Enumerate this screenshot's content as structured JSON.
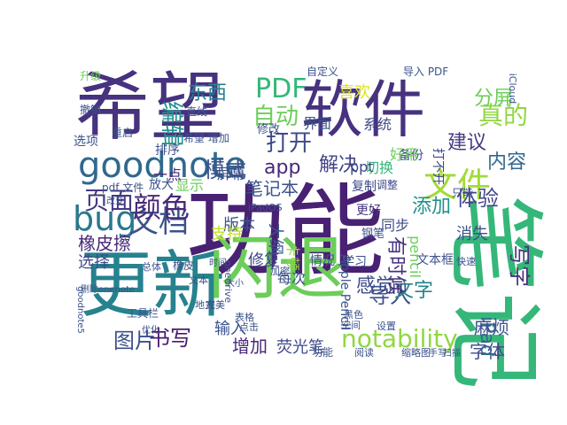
{
  "words": [
    {
      "text": "希望",
      "color": "#46327e",
      "vertical": false
    },
    {
      "text": "软件",
      "color": "#46327e",
      "vertical": false
    },
    {
      "text": "功能",
      "color": "#482173",
      "vertical": false
    },
    {
      "text": "更新",
      "color": "#26828e",
      "vertical": false
    },
    {
      "text": "闪退",
      "color": "#6ccd5a",
      "vertical": false
    },
    {
      "text": "笔记",
      "color": "#35b779",
      "vertical": true
    },
    {
      "text": "goodnote",
      "color": "#31688e",
      "vertical": false
    },
    {
      "text": "文件",
      "color": "#a2da37",
      "vertical": false
    },
    {
      "text": "bug",
      "color": "#2a788e",
      "vertical": false
    },
    {
      "text": "文档",
      "color": "#3b528b",
      "vertical": false
    },
    {
      "text": "颜色",
      "color": "#482878",
      "vertical": false
    },
    {
      "text": "页面",
      "color": "#443983",
      "vertical": false
    },
    {
      "text": "PDF",
      "color": "#35b779",
      "vertical": false
    },
    {
      "text": "自动",
      "color": "#6ccd5a",
      "vertical": false
    },
    {
      "text": "打开",
      "color": "#3e4989",
      "vertical": false
    },
    {
      "text": "app",
      "color": "#482878",
      "vertical": false
    },
    {
      "text": "模式",
      "color": "#3b528b",
      "vertical": false
    },
    {
      "text": "解决",
      "color": "#414487",
      "vertical": false
    },
    {
      "text": "真的",
      "color": "#90d743",
      "vertical": false
    },
    {
      "text": "分屏",
      "color": "#6ccd5a",
      "vertical": false
    },
    {
      "text": "建议",
      "color": "#443983",
      "vertical": false
    },
    {
      "text": "喜欢",
      "color": "#dde318",
      "vertical": false
    },
    {
      "text": "东西",
      "color": "#26828e",
      "vertical": false
    },
    {
      "text": "编辑",
      "color": "#21918c",
      "vertical": true
    },
    {
      "text": "体验",
      "color": "#414487",
      "vertical": false
    },
    {
      "text": "内容",
      "color": "#31688e",
      "vertical": false
    },
    {
      "text": "添加",
      "color": "#21918c",
      "vertical": false
    },
    {
      "text": "导入",
      "color": "#3b528b",
      "vertical": false
    },
    {
      "text": "感觉",
      "color": "#3e4989",
      "vertical": false
    },
    {
      "text": "文字",
      "color": "#26828e",
      "vertical": false
    },
    {
      "text": "书写",
      "color": "#481a6c",
      "vertical": false
    },
    {
      "text": "图片",
      "color": "#3b528b",
      "vertical": false
    },
    {
      "text": "notability",
      "color": "#90d743",
      "vertical": false
    },
    {
      "text": "字体",
      "color": "#3e4989",
      "vertical": false
    },
    {
      "text": "写字",
      "color": "#46327e",
      "vertical": true
    },
    {
      "text": "iPad",
      "color": "#31688e",
      "vertical": true
    },
    {
      "text": "麻烦",
      "color": "#3b528b",
      "vertical": false
    },
    {
      "text": "橡皮擦",
      "color": "#482878",
      "vertical": false
    },
    {
      "text": "选择",
      "color": "#3e4989",
      "vertical": false
    },
    {
      "text": "增加",
      "color": "#482878",
      "vertical": false
    },
    {
      "text": "荧光笔",
      "color": "#3e4989",
      "vertical": false
    },
    {
      "text": "输入",
      "color": "#3b528b",
      "vertical": false
    },
    {
      "text": "修复",
      "color": "#3e4989",
      "vertical": false
    },
    {
      "text": "笔记本",
      "color": "#3b528b",
      "vertical": false
    },
    {
      "text": "版本",
      "color": "#3b528b",
      "vertical": false
    },
    {
      "text": "支持",
      "color": "#c2df23",
      "vertical": false
    },
    {
      "text": "显示",
      "color": "#6ccd5a",
      "vertical": false
    },
    {
      "text": "屏幕",
      "color": "#3b528b",
      "vertical": false
    },
    {
      "text": "一点",
      "color": "#482878",
      "vertical": false
    },
    {
      "text": "切换",
      "color": "#35b779",
      "vertical": false
    },
    {
      "text": "同步",
      "color": "#3e4989",
      "vertical": false
    },
    {
      "text": "消失",
      "color": "#3b528b",
      "vertical": false
    },
    {
      "text": "有时候",
      "color": "#46327e",
      "vertical": true
    },
    {
      "text": "界面",
      "color": "#3b528b",
      "vertical": false
    },
    {
      "text": "系统",
      "color": "#3e4989",
      "vertical": false
    },
    {
      "text": "备份",
      "color": "#3e4989",
      "vertical": false
    },
    {
      "text": "好用",
      "color": "#6ccd5a",
      "vertical": false
    },
    {
      "text": "打不开",
      "color": "#3e4989",
      "vertical": true
    },
    {
      "text": "文本框",
      "color": "#3b528b",
      "vertical": false
    },
    {
      "text": "大纲",
      "color": "#3b528b",
      "vertical": true
    },
    {
      "text": "卡顿",
      "color": "#90d743",
      "vertical": true
    },
    {
      "text": "每次",
      "color": "#3b528b",
      "vertical": false
    },
    {
      "text": "情况",
      "color": "#3b528b",
      "vertical": false
    },
    {
      "text": "学习",
      "color": "#3b528b",
      "vertical": false
    },
    {
      "text": "Apple Pencil",
      "color": "#3b528b",
      "vertical": true
    },
    {
      "text": "pencil",
      "color": "#6ccd5a",
      "vertical": true
    },
    {
      "text": "钢笔",
      "color": "#3b528b",
      "vertical": false
    },
    {
      "text": "更好",
      "color": "#46327e",
      "vertical": false
    },
    {
      "text": "ppt",
      "color": "#3e4989",
      "vertical": false
    },
    {
      "text": "复制",
      "color": "#3e4989",
      "vertical": false
    },
    {
      "text": "调整",
      "color": "#3e4989",
      "vertical": false
    },
    {
      "text": "iPadOS",
      "color": "#3b528b",
      "vertical": false
    },
    {
      "text": "放大",
      "color": "#3b528b",
      "vertical": false
    },
    {
      "text": "pdf 文件",
      "color": "#3b528b",
      "vertical": false
    },
    {
      "text": "排序",
      "color": "#3b528b",
      "vertical": false
    },
    {
      "text": "选项",
      "color": "#3b528b",
      "vertical": false
    },
    {
      "text": "重启",
      "color": "#3b528b",
      "vertical": false
    },
    {
      "text": "撤销",
      "color": "#3b528b",
      "vertical": false
    },
    {
      "text": "升级",
      "color": "#6ccd5a",
      "vertical": false
    },
    {
      "text": "直线",
      "color": "#3b528b",
      "vertical": false
    },
    {
      "text": "希望 增加",
      "color": "#3b528b",
      "vertical": false
    },
    {
      "text": "修改",
      "color": "#3b528b",
      "vertical": false
    },
    {
      "text": "自定义",
      "color": "#3b528b",
      "vertical": false
    },
    {
      "text": "导入 PDF",
      "color": "#3b528b",
      "vertical": false
    },
    {
      "text": "iCloud",
      "color": "#3b528b",
      "vertical": true
    },
    {
      "text": "橡皮",
      "color": "#3b528b",
      "vertical": false
    },
    {
      "text": "总体",
      "color": "#3b528b",
      "vertical": false
    },
    {
      "text": "文本",
      "color": "#3b528b",
      "vertical": false
    },
    {
      "text": "快速",
      "color": "#3b528b",
      "vertical": false
    },
    {
      "text": "工具栏",
      "color": "#3b528b",
      "vertical": false
    },
    {
      "text": "地方",
      "color": "#3b528b",
      "vertical": false
    },
    {
      "text": "完美",
      "color": "#3b528b",
      "vertical": false
    },
    {
      "text": "时间",
      "color": "#3b528b",
      "vertical": false
    },
    {
      "text": "onedrive",
      "color": "#3b528b",
      "vertical": true
    },
    {
      "text": "大小",
      "color": "#3b528b",
      "vertical": false
    },
    {
      "text": "加密",
      "color": "#3b528b",
      "vertical": false
    },
    {
      "text": "表格",
      "color": "#3b528b",
      "vertical": false
    },
    {
      "text": "点击",
      "color": "#3b528b",
      "vertical": false
    },
    {
      "text": "黑色",
      "color": "#3b528b",
      "vertical": false
    },
    {
      "text": "空间",
      "color": "#3b528b",
      "vertical": false
    },
    {
      "text": "设置",
      "color": "#3b528b",
      "vertical": false
    },
    {
      "text": "功能",
      "color": "#3b528b",
      "vertical": false
    },
    {
      "text": "阅读",
      "color": "#3b528b",
      "vertical": false
    },
    {
      "text": "缩略图",
      "color": "#3b528b",
      "vertical": false
    },
    {
      "text": "手写",
      "color": "#3b528b",
      "vertical": false
    },
    {
      "text": "扫描",
      "color": "#3b528b",
      "vertical": false
    },
    {
      "text": "优化",
      "color": "#3b528b",
      "vertical": false
    },
    {
      "text": "goodnote5",
      "color": "#3b528b",
      "vertical": true
    },
    {
      "text": "删除onenote",
      "color": "#3b528b",
      "vertical": false
    },
    {
      "text": "改变",
      "color": "#3b528b",
      "vertical": false
    },
    {
      "text": "只能",
      "color": "#3b528b",
      "vertical": false
    }
  ]
}
